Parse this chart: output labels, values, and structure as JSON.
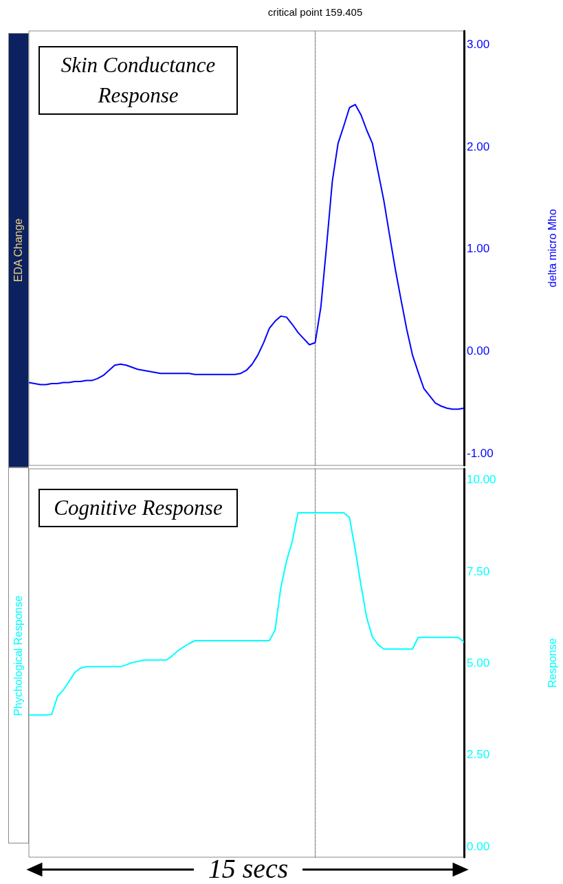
{
  "chart_data": [
    {
      "type": "line",
      "title": "EDA Change",
      "ylabel": "delta micro Mho",
      "annotations": [
        "Skin Conductance Response"
      ],
      "categories": [
        null,
        null,
        null,
        null,
        null,
        null,
        null,
        null,
        null,
        null,
        null,
        null,
        null,
        null,
        null,
        null,
        null,
        null,
        null,
        null,
        null,
        null,
        null,
        null,
        null,
        null,
        null,
        null,
        null,
        null,
        null,
        null,
        null,
        null,
        null,
        null,
        null,
        null,
        null,
        null,
        null,
        null,
        null,
        null,
        null,
        null,
        null,
        null,
        null,
        null,
        "critical point 159.405",
        null,
        null,
        null,
        null,
        null,
        null,
        null,
        null,
        null,
        null,
        null,
        null,
        null,
        null,
        null,
        null,
        null,
        null,
        null,
        null,
        null,
        null,
        null,
        null,
        null,
        null
      ],
      "ylim": [
        -1.12,
        3.13
      ],
      "yticks": [
        {
          "value": -1,
          "label": "-1.00"
        },
        {
          "value": 0,
          "label": "0.00"
        },
        {
          "value": 1,
          "label": "1.00"
        },
        {
          "value": 2,
          "label": "2.00"
        },
        {
          "value": 3,
          "label": "3.00"
        }
      ],
      "grid": false,
      "marker": "none",
      "line_style": "solid",
      "ref_lines": [
        {
          "axis": "x",
          "value": "critical point 159.405",
          "line_style": "dotted",
          "color": "#000000"
        }
      ],
      "series": [
        {
          "color": "#0000ff",
          "values": [
            -0.31,
            -0.32,
            -0.33,
            -0.33,
            -0.32,
            -0.32,
            -0.31,
            -0.31,
            -0.3,
            -0.3,
            -0.29,
            -0.29,
            -0.27,
            -0.24,
            -0.19,
            -0.14,
            -0.13,
            -0.14,
            -0.16,
            -0.18,
            -0.19,
            -0.2,
            -0.21,
            -0.22,
            -0.22,
            -0.22,
            -0.22,
            -0.22,
            -0.22,
            -0.23,
            -0.23,
            -0.23,
            -0.23,
            -0.23,
            -0.23,
            -0.23,
            -0.23,
            -0.22,
            -0.19,
            -0.13,
            -0.04,
            0.08,
            0.22,
            0.29,
            0.34,
            0.33,
            0.26,
            0.18,
            0.12,
            0.06,
            0.08,
            0.43,
            1.03,
            1.66,
            2.03,
            2.2,
            2.38,
            2.41,
            2.31,
            2.16,
            2.03,
            1.75,
            1.47,
            1.13,
            0.8,
            0.5,
            0.21,
            -0.04,
            -0.21,
            -0.37,
            -0.44,
            -0.51,
            -0.54,
            -0.56,
            -0.57,
            -0.57,
            -0.56
          ]
        }
      ]
    },
    {
      "type": "line",
      "title": "Phychological Response",
      "ylabel": "Response",
      "xlabel": "15 secs",
      "annotations": [
        "Cognitive Response"
      ],
      "categories": [
        null,
        null,
        null,
        null,
        null,
        null,
        null,
        null,
        null,
        null,
        null,
        null,
        null,
        null,
        null,
        null,
        null,
        null,
        null,
        null,
        null,
        null,
        null,
        null,
        null,
        null,
        null,
        null,
        null,
        null,
        null,
        null,
        null,
        null,
        null,
        null,
        null,
        null,
        null,
        null,
        null,
        null,
        null,
        null,
        null,
        null,
        null,
        null,
        null,
        null,
        null,
        null,
        null,
        null,
        null,
        null,
        null,
        null,
        null,
        null,
        null,
        null,
        null,
        null,
        null,
        null,
        null,
        null,
        null,
        null,
        null,
        null,
        null,
        null,
        null,
        null,
        null
      ],
      "ylim": [
        -0.3,
        10.3
      ],
      "yticks": [
        {
          "value": 0,
          "label": "0.00"
        },
        {
          "value": 2.5,
          "label": "2.50"
        },
        {
          "value": 5,
          "label": "5.00"
        },
        {
          "value": 7.5,
          "label": "7.50"
        },
        {
          "value": 10,
          "label": "10.00"
        }
      ],
      "tick_labels": "y",
      "grid": false,
      "marker": "none",
      "line_style": "solid",
      "series": [
        {
          "color": "#00ffff",
          "values": [
            3.58,
            3.58,
            3.58,
            3.58,
            3.6,
            4.09,
            4.26,
            4.49,
            4.74,
            4.86,
            4.9,
            4.9,
            4.9,
            4.9,
            4.9,
            4.9,
            4.9,
            4.95,
            5.01,
            5.04,
            5.08,
            5.08,
            5.08,
            5.08,
            5.08,
            5.19,
            5.33,
            5.44,
            5.53,
            5.61,
            5.61,
            5.61,
            5.61,
            5.61,
            5.61,
            5.61,
            5.61,
            5.61,
            5.61,
            5.61,
            5.61,
            5.61,
            5.61,
            5.9,
            7.05,
            7.78,
            8.32,
            9.1,
            9.1,
            9.1,
            9.1,
            9.1,
            9.1,
            9.1,
            9.1,
            9.1,
            8.97,
            8.09,
            7.13,
            6.24,
            5.71,
            5.5,
            5.38,
            5.38,
            5.38,
            5.38,
            5.38,
            5.38,
            5.7,
            5.7,
            5.7,
            5.7,
            5.7,
            5.7,
            5.7,
            5.7,
            5.57
          ]
        }
      ]
    }
  ]
}
